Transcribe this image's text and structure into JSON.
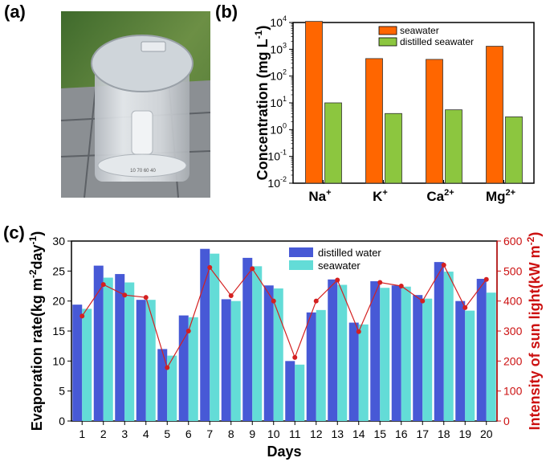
{
  "panels": {
    "a": {
      "label": "(a)"
    },
    "b": {
      "label": "(b)"
    },
    "c": {
      "label": "(c)"
    }
  },
  "photo": {
    "engraving": "10 70 60 40"
  },
  "chart_data": [
    {
      "type": "bar",
      "id": "b",
      "title": "",
      "yscale": "log",
      "ylim": [
        0.01,
        10000
      ],
      "yticks": [
        "10-2",
        "10-1",
        "100",
        "101",
        "102",
        "103",
        "104"
      ],
      "ylabel": "Concentration (mg L-1)",
      "categories": [
        "Na+",
        "K+",
        "Ca2+",
        "Mg2+"
      ],
      "series": [
        {
          "name": "seawater",
          "color": "#ff6600",
          "values": [
            11000,
            450,
            420,
            1300
          ]
        },
        {
          "name": "distilled seawater",
          "color": "#8cc63f",
          "values": [
            10,
            4,
            5.5,
            3
          ]
        }
      ],
      "legend": "top-right"
    },
    {
      "type": "bar",
      "id": "c",
      "title": "",
      "xlabel": "Days",
      "ylabel": "Evaporation rate(kg m-2day-1)",
      "ylim": [
        0,
        30
      ],
      "yticks": [
        0,
        5,
        10,
        15,
        20,
        25,
        30
      ],
      "y2label": "Intensity of sun light(kW m-2)",
      "y2lim": [
        0,
        600
      ],
      "y2ticks": [
        0,
        100,
        200,
        300,
        400,
        500,
        600
      ],
      "y2color": "#cc1111",
      "categories": [
        "1",
        "2",
        "3",
        "4",
        "5",
        "6",
        "7",
        "8",
        "9",
        "10",
        "11",
        "12",
        "13",
        "14",
        "15",
        "16",
        "17",
        "18",
        "19",
        "20"
      ],
      "series": [
        {
          "name": "distilled water",
          "color": "#4759d6",
          "values": [
            19.4,
            25.9,
            24.5,
            20.2,
            12.0,
            17.6,
            28.7,
            20.3,
            27.2,
            22.6,
            10.0,
            18.1,
            23.6,
            16.4,
            23.3,
            22.6,
            21.0,
            26.5,
            20.0,
            23.7
          ]
        },
        {
          "name": "seawater",
          "color": "#63dcd7",
          "values": [
            18.7,
            23.9,
            23.1,
            20.2,
            10.9,
            17.3,
            27.9,
            20.0,
            25.8,
            22.1,
            9.4,
            18.5,
            22.7,
            16.1,
            22.2,
            22.4,
            20.4,
            24.9,
            18.4,
            21.4
          ]
        },
        {
          "name": "sun light intensity",
          "axis": "right",
          "color": "#d42020",
          "values": [
            350,
            455,
            420,
            412,
            178,
            300,
            512,
            418,
            508,
            400,
            212,
            400,
            470,
            298,
            462,
            450,
            400,
            520,
            378,
            472
          ]
        }
      ],
      "legend": "top-center"
    }
  ]
}
